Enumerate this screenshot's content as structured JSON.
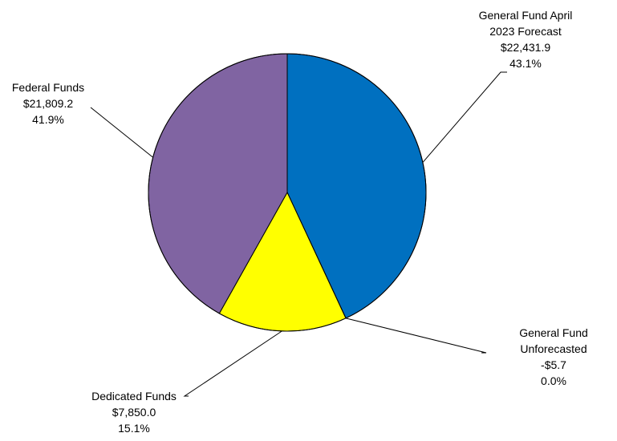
{
  "chart_data": {
    "type": "pie",
    "start_angle_deg": 90,
    "direction": "clockwise",
    "slices": [
      {
        "name": "General Fund April 2023 Forecast",
        "value": 22431.9,
        "percent": "43.1%",
        "value_label": "$22,431.9",
        "color": "#0070C0",
        "label_lines": [
          "General Fund April",
          "2023 Forecast",
          "$22,431.9",
          "43.1%"
        ]
      },
      {
        "name": "General Fund Unforecasted",
        "value": -5.7,
        "percent": "0.0%",
        "value_label": "-$5.7",
        "color": "#0070C0",
        "label_lines": [
          "General Fund",
          "Unforecasted",
          "-$5.7",
          "0.0%"
        ]
      },
      {
        "name": "Dedicated Funds",
        "value": 7850.0,
        "percent": "15.1%",
        "value_label": "$7,850.0",
        "color": "#FFFF00",
        "label_lines": [
          "Dedicated Funds",
          "$7,850.0",
          "15.1%"
        ]
      },
      {
        "name": "Federal Funds",
        "value": 21809.2,
        "percent": "41.9%",
        "value_label": "$21,809.2",
        "color": "#8064A2",
        "label_lines": [
          "Federal Funds",
          "$21,809.2",
          "41.9%"
        ]
      }
    ]
  }
}
